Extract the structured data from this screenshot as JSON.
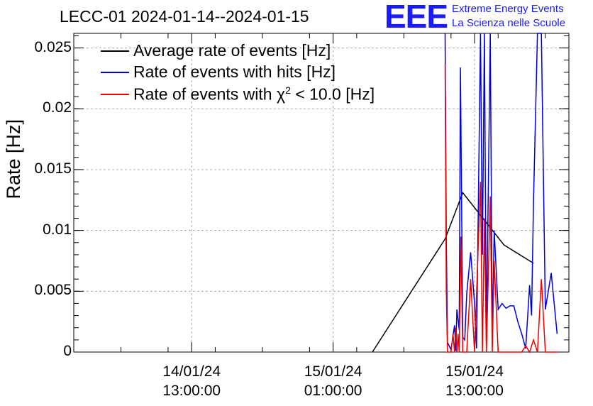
{
  "chart_data": {
    "type": "line",
    "title": "LECC-01 2024-01-14--2024-01-15",
    "ylabel": "Rate [Hz]",
    "xlabel": "",
    "ylim": [
      0,
      0.0262
    ],
    "xlim": [
      "2024-01-14T03:00",
      "2024-01-15T21:00"
    ],
    "y_ticks": [
      "0",
      "0.005",
      "0.01",
      "0.015",
      "0.02",
      "0.025"
    ],
    "y_tick_values": [
      0,
      0.005,
      0.01,
      0.015,
      0.02,
      0.025
    ],
    "x_ticks": [
      {
        "date": "14/01/24",
        "time": "13:00:00",
        "t": "2024-01-14T13:00"
      },
      {
        "date": "15/01/24",
        "time": "01:00:00",
        "t": "2024-01-15T01:00"
      },
      {
        "date": "15/01/24",
        "time": "13:00:00",
        "t": "2024-01-15T13:00"
      }
    ],
    "grid": true,
    "legend_position": "top-left",
    "series": [
      {
        "name": "Average rate of events [Hz]",
        "color": "#000000",
        "points": [
          [
            "2024-01-15T04:20",
            0.0
          ],
          [
            "2024-01-15T10:30",
            0.0093
          ],
          [
            "2024-01-15T12:00",
            0.0131
          ],
          [
            "2024-01-15T15:30",
            0.0088
          ],
          [
            "2024-01-15T18:00",
            0.0073
          ]
        ]
      },
      {
        "name": "Rate of events with hits [Hz]",
        "color": "#0000dd",
        "points": [
          [
            "2024-01-15T10:30",
            0.0262
          ],
          [
            "2024-01-15T10:36",
            0.0095
          ],
          [
            "2024-01-15T10:42",
            0.0008
          ],
          [
            "2024-01-15T11:00",
            0.0002
          ],
          [
            "2024-01-15T11:18",
            0.0022
          ],
          [
            "2024-01-15T11:24",
            0.0001
          ],
          [
            "2024-01-15T11:30",
            0.0035
          ],
          [
            "2024-01-15T11:42",
            0.0018
          ],
          [
            "2024-01-15T11:48",
            0.0234
          ],
          [
            "2024-01-15T12:00",
            0.0012
          ],
          [
            "2024-01-15T12:10",
            0.001
          ],
          [
            "2024-01-15T12:20",
            0.0048
          ],
          [
            "2024-01-15T12:40",
            0.0082
          ],
          [
            "2024-01-15T13:00",
            0.004
          ],
          [
            "2024-01-15T13:10",
            0.0003
          ],
          [
            "2024-01-15T13:30",
            0.0262
          ],
          [
            "2024-01-15T13:40",
            0.008
          ],
          [
            "2024-01-15T13:50",
            0.0262
          ],
          [
            "2024-01-15T14:00",
            0.001
          ],
          [
            "2024-01-15T14:20",
            0.0262
          ],
          [
            "2024-01-15T14:30",
            0.0012
          ],
          [
            "2024-01-15T14:40",
            0.01
          ],
          [
            "2024-01-15T15:00",
            0.0035
          ],
          [
            "2024-01-15T15:20",
            0.004
          ],
          [
            "2024-01-15T15:40",
            0.0036
          ],
          [
            "2024-01-15T16:00",
            0.0038
          ],
          [
            "2024-01-15T16:20",
            0.0038
          ],
          [
            "2024-01-15T16:40",
            0.0025
          ],
          [
            "2024-01-15T17:00",
            0.0015
          ],
          [
            "2024-01-15T17:20",
            0.0003
          ],
          [
            "2024-01-15T17:40",
            0.0055
          ],
          [
            "2024-01-15T17:50",
            0.003
          ],
          [
            "2024-01-15T18:00",
            0.0123
          ],
          [
            "2024-01-15T18:20",
            0.0262
          ],
          [
            "2024-01-15T18:40",
            0.0262
          ],
          [
            "2024-01-15T19:00",
            0.0035
          ],
          [
            "2024-01-15T19:30",
            0.0065
          ],
          [
            "2024-01-15T20:00",
            0.0015
          ]
        ]
      },
      {
        "name": "Rate of events with χ² < 10.0 [Hz]",
        "color": "#ee0000",
        "points": [
          [
            "2024-01-15T10:30",
            0.0237
          ],
          [
            "2024-01-15T10:36",
            0.005
          ],
          [
            "2024-01-15T10:42",
            0.0
          ],
          [
            "2024-01-15T11:00",
            0.0
          ],
          [
            "2024-01-15T11:10",
            0.0015
          ],
          [
            "2024-01-15T11:18",
            0.0
          ],
          [
            "2024-01-15T11:24",
            0.002
          ],
          [
            "2024-01-15T11:30",
            0.0
          ],
          [
            "2024-01-15T11:36",
            0.0015
          ],
          [
            "2024-01-15T11:42",
            0.0
          ],
          [
            "2024-01-15T11:50",
            0.0095
          ],
          [
            "2024-01-15T12:00",
            0.0
          ],
          [
            "2024-01-15T12:20",
            0.0
          ],
          [
            "2024-01-15T12:40",
            0.006
          ],
          [
            "2024-01-15T13:00",
            0.0
          ],
          [
            "2024-01-15T13:30",
            0.014
          ],
          [
            "2024-01-15T13:40",
            0.0
          ],
          [
            "2024-01-15T13:50",
            0.011
          ],
          [
            "2024-01-15T14:00",
            0.0
          ],
          [
            "2024-01-15T14:20",
            0.0128
          ],
          [
            "2024-01-15T14:30",
            0.0
          ],
          [
            "2024-01-15T14:40",
            0.0075
          ],
          [
            "2024-01-15T15:00",
            0.0
          ],
          [
            "2024-01-15T15:20",
            0.0
          ],
          [
            "2024-01-15T15:40",
            0.0
          ],
          [
            "2024-01-15T16:00",
            0.0
          ],
          [
            "2024-01-15T16:20",
            0.0
          ],
          [
            "2024-01-15T16:40",
            0.0
          ],
          [
            "2024-01-15T17:00",
            0.0
          ],
          [
            "2024-01-15T17:20",
            0.0005
          ],
          [
            "2024-01-15T17:40",
            0.0
          ],
          [
            "2024-01-15T18:00",
            0.001
          ],
          [
            "2024-01-15T18:20",
            0.0
          ],
          [
            "2024-01-15T18:40",
            0.006
          ],
          [
            "2024-01-15T19:00",
            0.0
          ],
          [
            "2024-01-15T19:30",
            0.0
          ],
          [
            "2024-01-15T20:00",
            0.0
          ]
        ]
      }
    ]
  },
  "logo": {
    "mark": "EEE",
    "line1": "Extreme Energy Events",
    "line2": "La Scienza nelle Scuole"
  },
  "legend": {
    "avg": "Average rate of events [Hz]",
    "hits": "Rate of events with hits [Hz]",
    "chi2_pre": "Rate of events with χ",
    "chi2_sup": "2",
    "chi2_post": " < 10.0 [Hz]"
  }
}
